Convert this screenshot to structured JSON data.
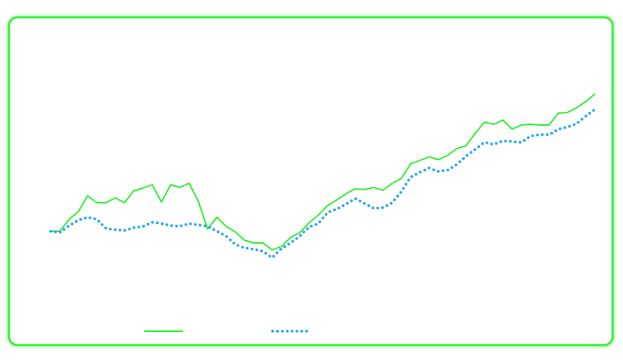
{
  "chart_data": {
    "type": "line",
    "series": [
      {
        "color": "#22ee22",
        "style": "solid",
        "values": [
          67,
          67,
          84,
          95,
          118,
          108,
          108,
          115,
          108,
          125,
          129,
          134,
          109,
          134,
          130,
          136,
          110,
          70,
          87,
          74,
          66,
          54,
          50,
          50,
          40,
          45,
          58,
          65,
          79,
          90,
          104,
          112,
          121,
          128,
          127,
          130,
          126,
          136,
          143,
          164,
          169,
          174,
          170,
          176,
          186,
          190,
          208,
          224,
          221,
          227,
          214,
          220,
          221,
          220,
          220,
          237,
          238,
          245,
          254,
          265
        ]
      },
      {
        "color": "#1ea7f0",
        "style": "dotted",
        "values": [
          67,
          65,
          75,
          83,
          87,
          84,
          71,
          69,
          68,
          72,
          74,
          80,
          78,
          75,
          74,
          78,
          76,
          74,
          67,
          60,
          48,
          43,
          41,
          38,
          29,
          42,
          50,
          60,
          73,
          78,
          94,
          99,
          106,
          114,
          107,
          100,
          101,
          108,
          124,
          145,
          152,
          158,
          153,
          155,
          163,
          175,
          185,
          195,
          192,
          197,
          196,
          195,
          204,
          206,
          206,
          214,
          217,
          222,
          233,
          243
        ]
      }
    ]
  }
}
